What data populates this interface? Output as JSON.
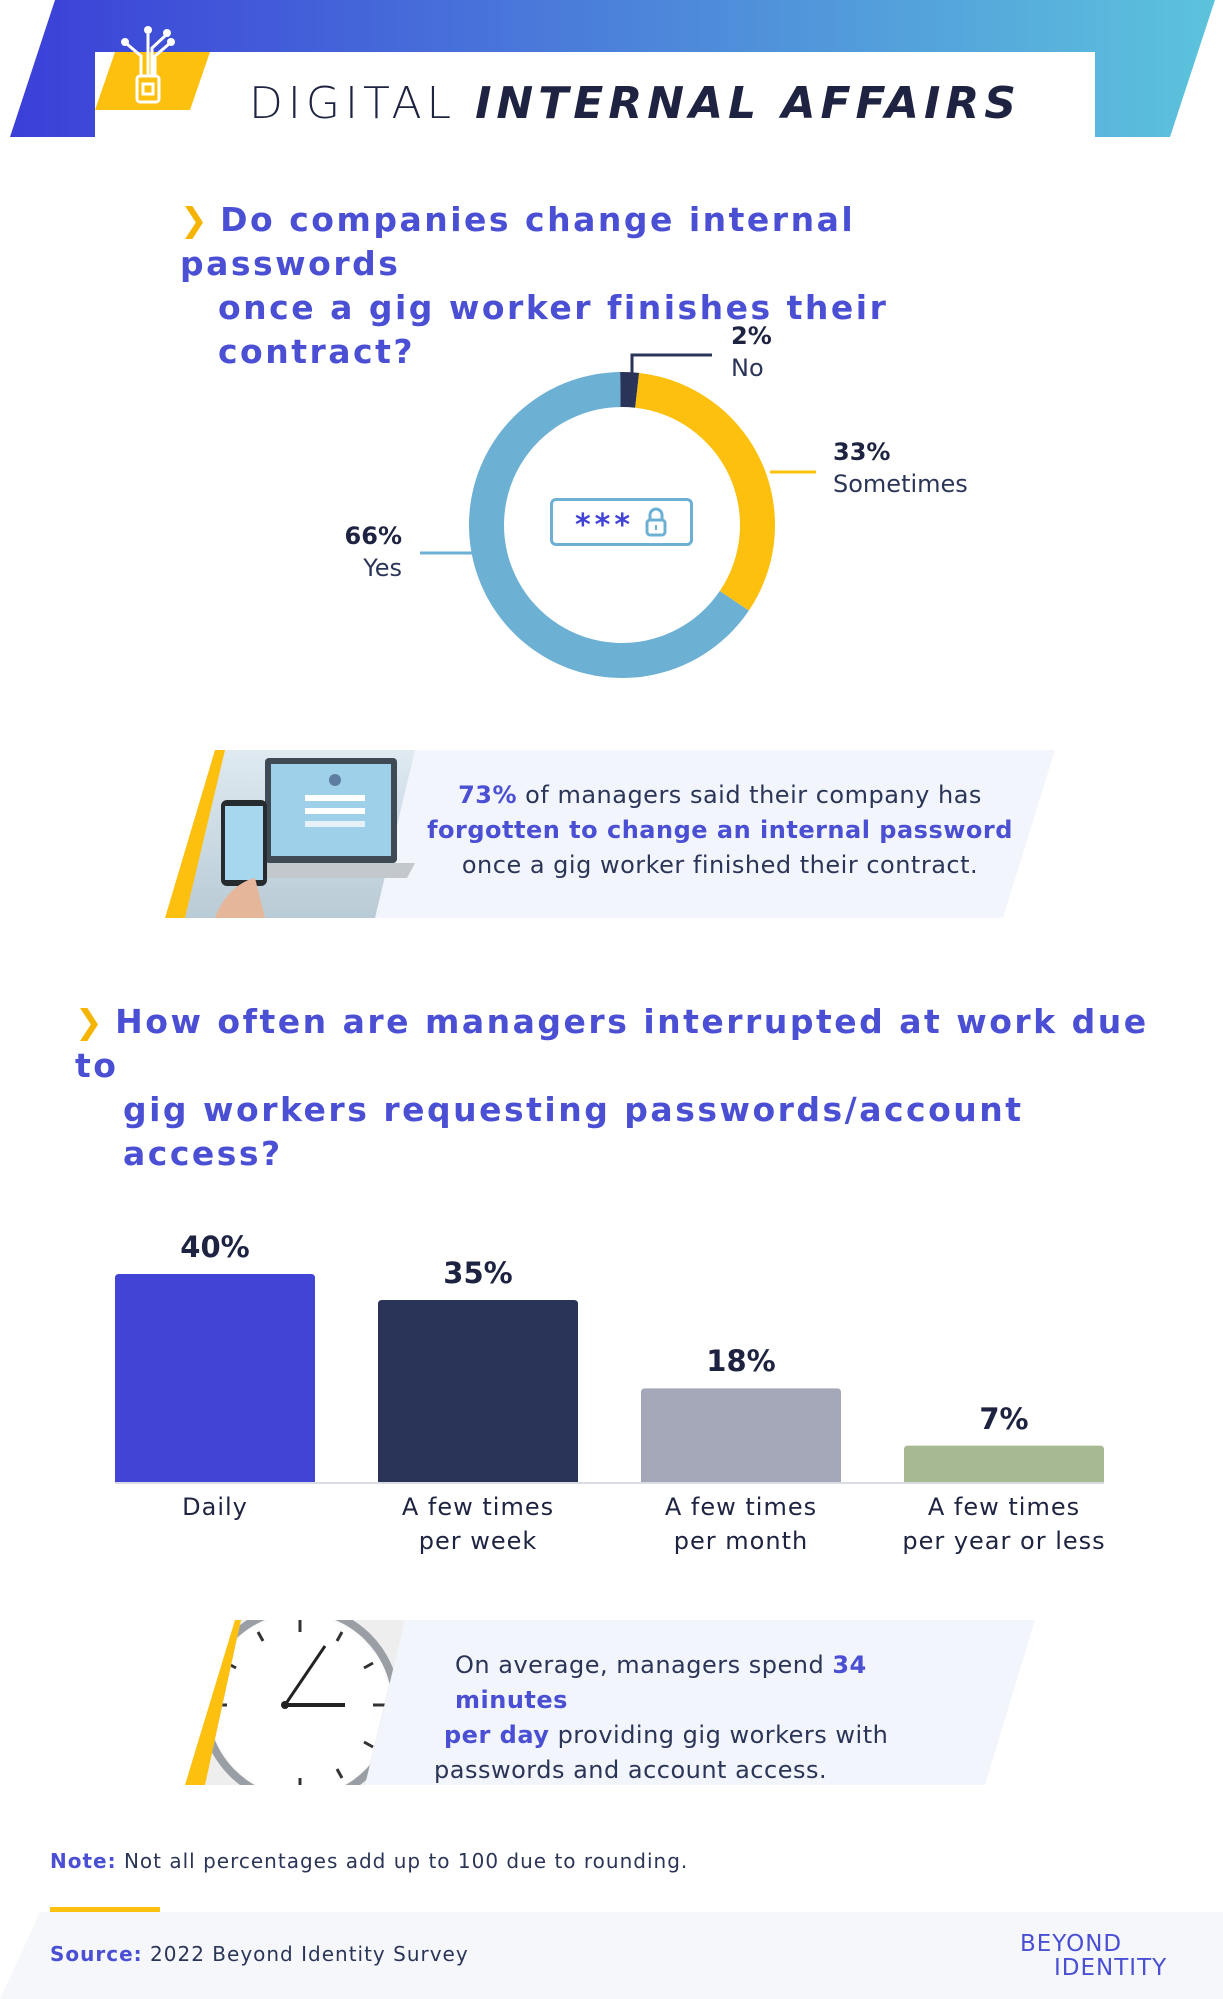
{
  "header": {
    "title_light": "DIGITAL",
    "title_bold": "INTERNAL AFFAIRS"
  },
  "section1": {
    "question_line1": "Do companies change internal passwords",
    "question_line2": "once a gig worker finishes their contract?",
    "password_mask": "***"
  },
  "callout1": {
    "stat": "73%",
    "text_a": " of managers said their company has",
    "highlight": "forgotten to change an internal password",
    "text_b": "once a gig worker finished their contract."
  },
  "section2": {
    "question_line1": "How often are managers interrupted at work due to",
    "question_line2": "gig workers requesting passwords/account access?"
  },
  "callout2": {
    "text_a": "On average, managers spend ",
    "highlight_a": "34 minutes",
    "highlight_b": "per day",
    "text_b": " providing gig workers with",
    "text_c": "passwords and account access."
  },
  "footer": {
    "note_label": "Note:",
    "note_text": "Not all percentages add up to 100 due to rounding.",
    "source_label": "Source:",
    "source_text": "2022 Beyond Identity Survey",
    "logo_line1": "BEYOND",
    "logo_line2": "IDENTITY"
  },
  "chart_data": [
    {
      "type": "pie",
      "slices": [
        {
          "label": "No",
          "value": 2,
          "display": "2%",
          "color": "#2a3459"
        },
        {
          "label": "Sometimes",
          "value": 33,
          "display": "33%",
          "color": "#fdc00f"
        },
        {
          "label": "Yes",
          "value": 66,
          "display": "66%",
          "color": "#6cb0d4"
        }
      ]
    },
    {
      "type": "bar",
      "categories": [
        [
          "Daily"
        ],
        [
          "A few times",
          "per week"
        ],
        [
          "A few times",
          "per month"
        ],
        [
          "A few times",
          "per year or less"
        ]
      ],
      "values": [
        40,
        35,
        18,
        7
      ],
      "value_labels": [
        "40%",
        "35%",
        "18%",
        "7%"
      ],
      "colors": [
        "#4244d6",
        "#2a3459",
        "#a3a7b8",
        "#a7b993"
      ],
      "ylim": [
        0,
        40
      ]
    }
  ]
}
